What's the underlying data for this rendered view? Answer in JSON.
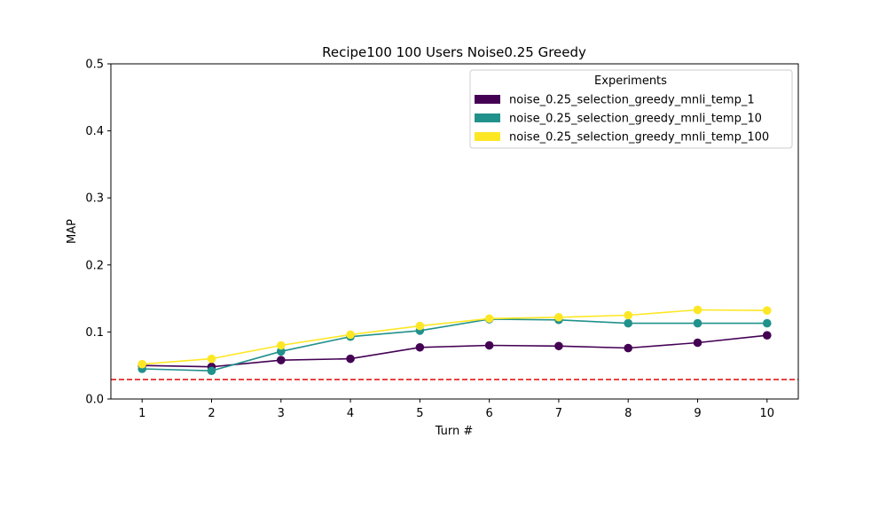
{
  "chart_data": {
    "type": "line",
    "title": "Recipe100 100 Users Noise0.25 Greedy",
    "xlabel": "Turn #",
    "ylabel": "MAP",
    "x": [
      1,
      2,
      3,
      4,
      5,
      6,
      7,
      8,
      9,
      10
    ],
    "xticks": [
      "1",
      "2",
      "3",
      "4",
      "5",
      "6",
      "7",
      "8",
      "9",
      "10"
    ],
    "yticks": [
      "0.0",
      "0.1",
      "0.2",
      "0.3",
      "0.4",
      "0.5"
    ],
    "xlim": [
      0.55,
      10.45
    ],
    "ylim": [
      0.0,
      0.5
    ],
    "grid": false,
    "legend": {
      "title": "Experiments",
      "placement": "top-right"
    },
    "series": [
      {
        "name": "noise_0.25_selection_greedy_mnli_temp_1",
        "color": "#440154",
        "values": [
          0.05,
          0.048,
          0.058,
          0.06,
          0.077,
          0.08,
          0.079,
          0.076,
          0.084,
          0.095
        ]
      },
      {
        "name": "noise_0.25_selection_greedy_mnli_temp_10",
        "color": "#21918c",
        "values": [
          0.045,
          0.042,
          0.071,
          0.093,
          0.102,
          0.119,
          0.118,
          0.113,
          0.113,
          0.113
        ]
      },
      {
        "name": "noise_0.25_selection_greedy_mnli_temp_100",
        "color": "#fde725",
        "values": [
          0.052,
          0.06,
          0.08,
          0.096,
          0.109,
          0.12,
          0.122,
          0.125,
          0.133,
          0.132
        ]
      }
    ],
    "reference_line": {
      "value": 0.029,
      "color": "#e31a1c",
      "style": "dashed"
    }
  }
}
